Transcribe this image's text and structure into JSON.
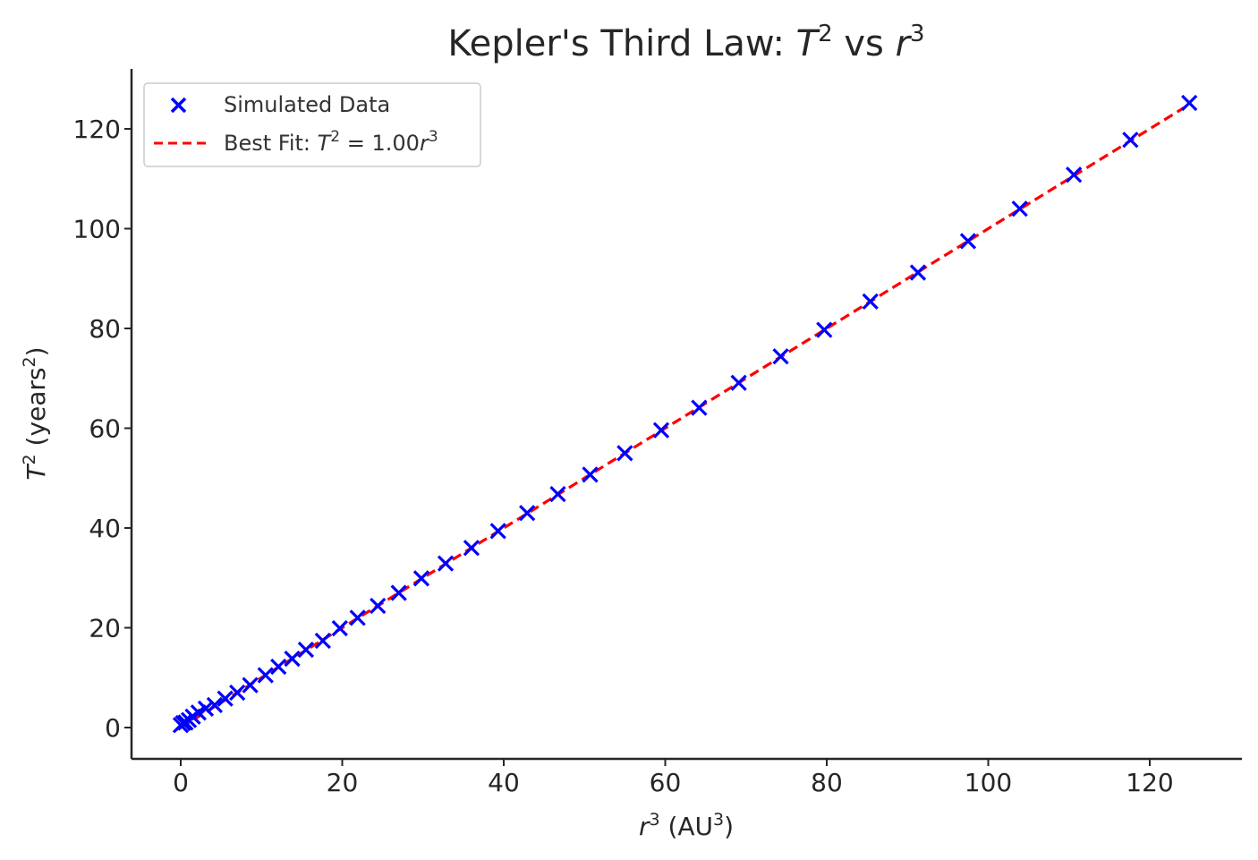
{
  "chart_data": {
    "type": "scatter",
    "title": "Kepler's Third Law: T² vs r³",
    "title_parts": {
      "prefix": "Kepler's Third Law: ",
      "t_var": "T",
      "t_exp": "2",
      "middle": " vs ",
      "r_var": "r",
      "r_exp": "3"
    },
    "xlabel": "r³ (AU³)",
    "xlabel_parts": {
      "var": "r",
      "exp": "3",
      "unit_open": " (AU",
      "unit_exp": "3",
      "unit_close": ")"
    },
    "ylabel": "T² (years²)",
    "ylabel_parts": {
      "var": "T",
      "exp": "2",
      "unit_open": " (years",
      "unit_exp": "2",
      "unit_close": ")"
    },
    "xlim": [
      -6.2,
      131.2
    ],
    "ylim": [
      -6.2,
      131.2
    ],
    "xticks": [
      0,
      20,
      40,
      60,
      80,
      100,
      120
    ],
    "yticks": [
      0,
      20,
      40,
      60,
      80,
      100,
      120
    ],
    "grid": false,
    "legend_position": "upper-left",
    "series": [
      {
        "name": "Simulated Data",
        "kind": "scatter",
        "marker": "x",
        "color": "#0000ff",
        "x": [
          0.0,
          0.3,
          0.6,
          1.0,
          1.5,
          2.2,
          3.1,
          4.2,
          5.5,
          7.0,
          8.6,
          10.5,
          12.1,
          13.8,
          15.5,
          17.6,
          19.7,
          21.9,
          24.4,
          27.0,
          29.8,
          32.8,
          36.0,
          39.3,
          42.9,
          46.7,
          50.7,
          55.0,
          59.5,
          64.2,
          69.1,
          74.3,
          79.7,
          85.4,
          91.3,
          97.5,
          103.9,
          110.6,
          117.6,
          124.9
        ],
        "y": [
          0.5,
          0.9,
          1.0,
          1.5,
          2.2,
          3.0,
          3.8,
          4.5,
          5.8,
          7.0,
          8.5,
          10.5,
          12.2,
          13.8,
          15.6,
          17.4,
          19.9,
          22.0,
          24.4,
          27.0,
          29.9,
          32.9,
          36.0,
          39.4,
          43.0,
          46.8,
          50.7,
          55.0,
          59.6,
          64.1,
          69.1,
          74.4,
          79.7,
          85.4,
          91.2,
          97.5,
          104.0,
          110.8,
          117.8,
          125.2
        ]
      },
      {
        "name": "Best Fit: T² = 1.00r³",
        "kind": "line",
        "style": "dashed",
        "color": "#ff0000",
        "x": [
          0,
          124.9
        ],
        "y": [
          0,
          124.9
        ]
      }
    ],
    "legend": {
      "scatter_label": "Simulated Data",
      "fit_label_parts": {
        "prefix": "Best Fit: ",
        "var": "T",
        "exp": "2",
        "eq": " = 1.00",
        "var2": "r",
        "exp2": "3"
      }
    }
  }
}
